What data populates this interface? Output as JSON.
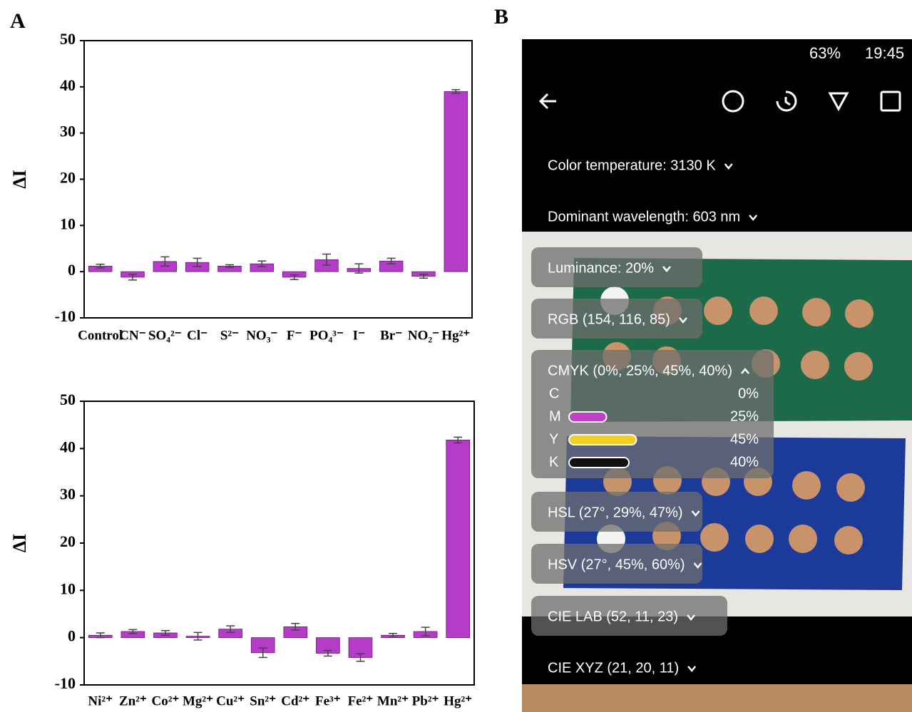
{
  "panels": {
    "a": "A",
    "b": "B"
  },
  "chart_data": [
    {
      "type": "bar",
      "ylabel": "ΔI",
      "categories": [
        "Control",
        "CN⁻",
        "SO₄²⁻",
        "Cl⁻",
        "S²⁻",
        "NO₃⁻",
        "F⁻",
        "PO₄³⁻",
        "I⁻",
        "Br⁻",
        "NO₂⁻",
        "Hg²⁺"
      ],
      "values": [
        1.2,
        -1.2,
        2.2,
        2.0,
        1.2,
        1.7,
        -1.2,
        2.6,
        0.7,
        2.3,
        -1.0,
        39.0
      ],
      "errors": [
        0.4,
        0.6,
        1.0,
        0.9,
        0.3,
        0.6,
        0.5,
        1.2,
        1.0,
        0.6,
        0.4,
        0.4
      ],
      "color": "#b43cc8",
      "ylim": [
        -10,
        50
      ],
      "yticks": [
        -10,
        0,
        10,
        20,
        30,
        40,
        50
      ]
    },
    {
      "type": "bar",
      "ylabel": "ΔI",
      "categories": [
        "Ni²⁺",
        "Zn²⁺",
        "Co²⁺",
        "Mg²⁺",
        "Cu²⁺",
        "Sn²⁺",
        "Cd²⁺",
        "Fe³⁺",
        "Fe²⁺",
        "Mn²⁺",
        "Pb²⁺",
        "Hg²⁺"
      ],
      "values": [
        0.5,
        1.3,
        1.0,
        0.3,
        1.8,
        -3.2,
        2.3,
        -3.3,
        -4.2,
        0.5,
        1.3,
        41.8
      ],
      "errors": [
        0.5,
        0.4,
        0.5,
        0.8,
        0.7,
        1.0,
        0.7,
        0.6,
        0.8,
        0.4,
        0.9,
        0.6
      ],
      "color": "#b43cc8",
      "ylim": [
        -10,
        50
      ],
      "yticks": [
        -10,
        0,
        10,
        20,
        30,
        40,
        50
      ]
    }
  ],
  "phone": {
    "status": {
      "battery": "63%",
      "time": "19:45"
    },
    "menu": [
      "Color temperature: 3130 K",
      "Dominant wavelength: 603 nm",
      "Luminance: 20%",
      "RGB (154, 116, 85)",
      "CMYK (0%, 25%, 45%, 40%)",
      "HSL (27°, 29%, 47%)",
      "HSV (27°, 45%, 60%)",
      "CIE LAB (52, 11, 23)",
      "CIE XYZ (21, 20, 11)"
    ],
    "cmyk": {
      "labels": [
        "C",
        "M",
        "Y",
        "K"
      ],
      "values": [
        0,
        25,
        45,
        40
      ],
      "value_labels": [
        "0%",
        "25%",
        "45%",
        "40%"
      ],
      "colors": [
        "#ffffff",
        "#c040c8",
        "#f0d020",
        "#111111"
      ]
    }
  }
}
